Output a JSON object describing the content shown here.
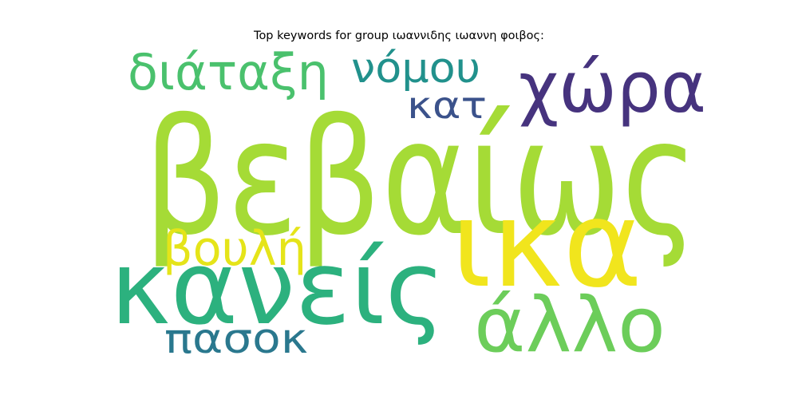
{
  "chart_data": {
    "type": "wordcloud",
    "title": "Top keywords for group ιωαννιδης ιωαννη φοιβος:",
    "words": [
      {
        "text": "βεβαίως",
        "color": "#a5db36",
        "rank": 1
      },
      {
        "text": "ικα",
        "color": "#f1e51d",
        "rank": 2
      },
      {
        "text": "κανείς",
        "color": "#2cb17e",
        "rank": 3
      },
      {
        "text": "χώρα",
        "color": "#46337e",
        "rank": 4
      },
      {
        "text": "άλλο",
        "color": "#6ccd5a",
        "rank": 5
      },
      {
        "text": "διάταξη",
        "color": "#4ac16d",
        "rank": 6
      },
      {
        "text": "νόμου",
        "color": "#21918c",
        "rank": 7
      },
      {
        "text": "κατ",
        "color": "#3b528b",
        "rank": 8
      },
      {
        "text": "βουλή",
        "color": "#e5e419",
        "rank": 9
      },
      {
        "text": "πασοκ",
        "color": "#2a788e",
        "rank": 10
      }
    ]
  }
}
